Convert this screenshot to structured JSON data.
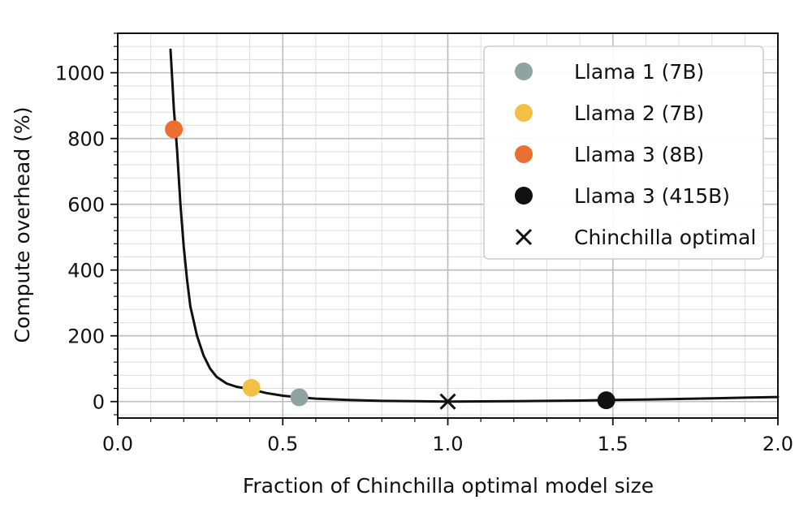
{
  "chart_data": {
    "type": "line",
    "xlabel": "Fraction of Chinchilla optimal model size",
    "ylabel": "Compute overhead (%)",
    "xlim": [
      0.0,
      2.0
    ],
    "ylim": [
      -50,
      1120
    ],
    "x_ticks": [
      0.0,
      0.5,
      1.0,
      1.5,
      2.0
    ],
    "x_tick_labels": [
      "0.0",
      "0.5",
      "1.0",
      "1.5",
      "2.0"
    ],
    "y_ticks": [
      0,
      200,
      400,
      600,
      800,
      1000
    ],
    "y_tick_labels": [
      "0",
      "200",
      "400",
      "600",
      "800",
      "1000"
    ],
    "grid": true,
    "legend_position": "top-right",
    "curve": {
      "x": [
        0.16,
        0.165,
        0.17,
        0.175,
        0.18,
        0.19,
        0.2,
        0.21,
        0.22,
        0.24,
        0.26,
        0.28,
        0.3,
        0.33,
        0.36,
        0.4,
        0.45,
        0.5,
        0.55,
        0.6,
        0.7,
        0.8,
        0.9,
        1.0,
        1.1,
        1.2,
        1.3,
        1.4,
        1.5,
        1.6,
        1.7,
        1.8,
        1.9,
        2.0
      ],
      "y": [
        1070,
        980,
        890,
        830,
        760,
        600,
        470,
        370,
        290,
        200,
        140,
        100,
        75,
        55,
        45,
        38,
        26,
        18,
        13,
        9,
        5,
        2,
        1,
        0,
        0.5,
        1,
        2,
        3,
        5,
        6,
        8,
        10,
        12,
        14
      ]
    },
    "series": [
      {
        "name": "Llama 1 (7B)",
        "marker": "circle",
        "color": "#8fa3a0",
        "x": [
          0.55
        ],
        "y": [
          13
        ]
      },
      {
        "name": "Llama 2 (7B)",
        "marker": "circle",
        "color": "#f2c143",
        "x": [
          0.405
        ],
        "y": [
          42
        ]
      },
      {
        "name": "Llama 3 (8B)",
        "marker": "circle",
        "color": "#ea6f30",
        "x": [
          0.17
        ],
        "y": [
          828
        ]
      },
      {
        "name": "Llama 3 (415B)",
        "marker": "circle",
        "color": "#111111",
        "x": [
          1.48
        ],
        "y": [
          4
        ]
      },
      {
        "name": "Chinchilla optimal",
        "marker": "x",
        "color": "#111111",
        "x": [
          1.0
        ],
        "y": [
          0
        ]
      }
    ]
  }
}
